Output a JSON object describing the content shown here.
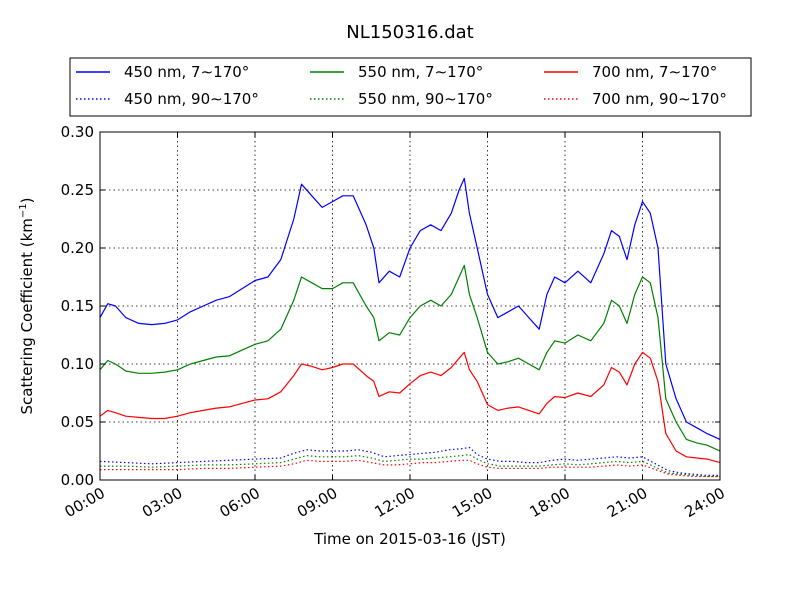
{
  "chart_data": {
    "type": "line",
    "title": "NL150316.dat",
    "xlabel": "Time on 2015-03-16 (JST)",
    "ylabel_main": "Scattering Coefficient (km",
    "ylabel_sup": "−1",
    "ylabel_end": ")",
    "xlim": [
      0,
      24
    ],
    "ylim": [
      0,
      0.3
    ],
    "grid": true,
    "legend_position": "top",
    "xticks": [
      {
        "value": 0,
        "label": "00:00"
      },
      {
        "value": 3,
        "label": "03:00"
      },
      {
        "value": 6,
        "label": "06:00"
      },
      {
        "value": 9,
        "label": "09:00"
      },
      {
        "value": 12,
        "label": "12:00"
      },
      {
        "value": 15,
        "label": "15:00"
      },
      {
        "value": 18,
        "label": "18:00"
      },
      {
        "value": 21,
        "label": "21:00"
      },
      {
        "value": 24,
        "label": "24:00"
      }
    ],
    "yticks": [
      {
        "value": 0.0,
        "label": "0.00"
      },
      {
        "value": 0.05,
        "label": "0.05"
      },
      {
        "value": 0.1,
        "label": "0.10"
      },
      {
        "value": 0.15,
        "label": "0.15"
      },
      {
        "value": 0.2,
        "label": "0.20"
      },
      {
        "value": 0.25,
        "label": "0.25"
      },
      {
        "value": 0.3,
        "label": "0.30"
      }
    ],
    "series": [
      {
        "name": "450 nm, 7∼170°",
        "color": "#0000ff",
        "style": "solid",
        "x": [
          0,
          0.3,
          0.6,
          1.0,
          1.5,
          2.0,
          2.5,
          3.0,
          3.5,
          4.0,
          4.5,
          5.0,
          5.5,
          6.0,
          6.5,
          7.0,
          7.5,
          7.8,
          8.2,
          8.6,
          9.0,
          9.4,
          9.8,
          10.3,
          10.6,
          10.8,
          11.2,
          11.6,
          12.0,
          12.4,
          12.8,
          13.2,
          13.6,
          13.9,
          14.1,
          14.3,
          14.6,
          15.0,
          15.4,
          15.8,
          16.2,
          16.6,
          17.0,
          17.3,
          17.6,
          18.0,
          18.5,
          19.0,
          19.5,
          19.8,
          20.1,
          20.4,
          20.7,
          21.0,
          21.3,
          21.6,
          21.9,
          22.3,
          22.7,
          23.1,
          23.5,
          24.0
        ],
        "y": [
          0.14,
          0.152,
          0.15,
          0.14,
          0.135,
          0.134,
          0.135,
          0.138,
          0.145,
          0.15,
          0.155,
          0.158,
          0.165,
          0.172,
          0.175,
          0.19,
          0.225,
          0.255,
          0.245,
          0.235,
          0.24,
          0.245,
          0.245,
          0.22,
          0.2,
          0.17,
          0.18,
          0.175,
          0.2,
          0.215,
          0.22,
          0.215,
          0.23,
          0.25,
          0.26,
          0.23,
          0.2,
          0.16,
          0.14,
          0.145,
          0.15,
          0.14,
          0.13,
          0.16,
          0.175,
          0.17,
          0.18,
          0.17,
          0.195,
          0.215,
          0.21,
          0.19,
          0.22,
          0.24,
          0.23,
          0.2,
          0.1,
          0.07,
          0.05,
          0.045,
          0.04,
          0.035
        ]
      },
      {
        "name": "550 nm, 7∼170°",
        "color": "#008000",
        "style": "solid",
        "x": [
          0,
          0.3,
          0.6,
          1.0,
          1.5,
          2.0,
          2.5,
          3.0,
          3.5,
          4.0,
          4.5,
          5.0,
          5.5,
          6.0,
          6.5,
          7.0,
          7.5,
          7.8,
          8.2,
          8.6,
          9.0,
          9.4,
          9.8,
          10.3,
          10.6,
          10.8,
          11.2,
          11.6,
          12.0,
          12.4,
          12.8,
          13.2,
          13.6,
          13.9,
          14.1,
          14.3,
          14.6,
          15.0,
          15.4,
          15.8,
          16.2,
          16.6,
          17.0,
          17.3,
          17.6,
          18.0,
          18.5,
          19.0,
          19.5,
          19.8,
          20.1,
          20.4,
          20.7,
          21.0,
          21.3,
          21.6,
          21.9,
          22.3,
          22.7,
          23.1,
          23.5,
          24.0
        ],
        "y": [
          0.095,
          0.103,
          0.1,
          0.094,
          0.092,
          0.092,
          0.093,
          0.095,
          0.1,
          0.103,
          0.106,
          0.107,
          0.112,
          0.117,
          0.12,
          0.13,
          0.155,
          0.175,
          0.17,
          0.165,
          0.165,
          0.17,
          0.17,
          0.15,
          0.14,
          0.12,
          0.127,
          0.125,
          0.14,
          0.15,
          0.155,
          0.15,
          0.16,
          0.175,
          0.185,
          0.16,
          0.14,
          0.11,
          0.1,
          0.102,
          0.105,
          0.1,
          0.095,
          0.11,
          0.12,
          0.118,
          0.125,
          0.12,
          0.135,
          0.155,
          0.15,
          0.135,
          0.16,
          0.175,
          0.17,
          0.14,
          0.07,
          0.05,
          0.035,
          0.032,
          0.03,
          0.025
        ]
      },
      {
        "name": "700 nm, 7∼170°",
        "color": "#ff0000",
        "style": "solid",
        "x": [
          0,
          0.3,
          0.6,
          1.0,
          1.5,
          2.0,
          2.5,
          3.0,
          3.5,
          4.0,
          4.5,
          5.0,
          5.5,
          6.0,
          6.5,
          7.0,
          7.5,
          7.8,
          8.2,
          8.6,
          9.0,
          9.4,
          9.8,
          10.3,
          10.6,
          10.8,
          11.2,
          11.6,
          12.0,
          12.4,
          12.8,
          13.2,
          13.6,
          13.9,
          14.1,
          14.3,
          14.6,
          15.0,
          15.4,
          15.8,
          16.2,
          16.6,
          17.0,
          17.3,
          17.6,
          18.0,
          18.5,
          19.0,
          19.5,
          19.8,
          20.1,
          20.4,
          20.7,
          21.0,
          21.3,
          21.6,
          21.9,
          22.3,
          22.7,
          23.1,
          23.5,
          24.0
        ],
        "y": [
          0.055,
          0.06,
          0.058,
          0.055,
          0.054,
          0.053,
          0.053,
          0.055,
          0.058,
          0.06,
          0.062,
          0.063,
          0.066,
          0.069,
          0.07,
          0.076,
          0.09,
          0.1,
          0.098,
          0.095,
          0.097,
          0.1,
          0.1,
          0.09,
          0.085,
          0.072,
          0.076,
          0.075,
          0.083,
          0.09,
          0.093,
          0.09,
          0.097,
          0.105,
          0.11,
          0.095,
          0.085,
          0.065,
          0.06,
          0.062,
          0.063,
          0.06,
          0.057,
          0.066,
          0.072,
          0.071,
          0.075,
          0.072,
          0.082,
          0.097,
          0.093,
          0.082,
          0.1,
          0.11,
          0.105,
          0.085,
          0.04,
          0.025,
          0.02,
          0.019,
          0.018,
          0.015
        ]
      },
      {
        "name": "450 nm, 90∼170°",
        "color": "#0000ff",
        "style": "dotted",
        "x": [
          0,
          1.0,
          2.0,
          3.0,
          4.0,
          5.0,
          6.0,
          7.0,
          7.5,
          8.0,
          8.5,
          9.0,
          9.5,
          10.0,
          10.5,
          11.0,
          11.5,
          12.0,
          12.5,
          13.0,
          13.5,
          14.0,
          14.3,
          14.6,
          15.0,
          15.5,
          16.0,
          16.5,
          17.0,
          17.5,
          18.0,
          18.5,
          19.0,
          19.5,
          20.0,
          20.5,
          21.0,
          21.5,
          22.0,
          22.5,
          23.0,
          23.5,
          24.0
        ],
        "y": [
          0.016,
          0.015,
          0.014,
          0.015,
          0.016,
          0.017,
          0.018,
          0.019,
          0.023,
          0.026,
          0.025,
          0.025,
          0.025,
          0.026,
          0.024,
          0.02,
          0.021,
          0.022,
          0.023,
          0.024,
          0.026,
          0.027,
          0.028,
          0.022,
          0.018,
          0.016,
          0.016,
          0.015,
          0.015,
          0.017,
          0.018,
          0.017,
          0.018,
          0.019,
          0.02,
          0.019,
          0.02,
          0.014,
          0.008,
          0.006,
          0.005,
          0.004,
          0.004
        ]
      },
      {
        "name": "550 nm, 90∼170°",
        "color": "#008000",
        "style": "dotted",
        "x": [
          0,
          1.0,
          2.0,
          3.0,
          4.0,
          5.0,
          6.0,
          7.0,
          7.5,
          8.0,
          8.5,
          9.0,
          9.5,
          10.0,
          10.5,
          11.0,
          11.5,
          12.0,
          12.5,
          13.0,
          13.5,
          14.0,
          14.3,
          14.6,
          15.0,
          15.5,
          16.0,
          16.5,
          17.0,
          17.5,
          18.0,
          18.5,
          19.0,
          19.5,
          20.0,
          20.5,
          21.0,
          21.5,
          22.0,
          22.5,
          23.0,
          23.5,
          24.0
        ],
        "y": [
          0.012,
          0.012,
          0.011,
          0.012,
          0.013,
          0.013,
          0.014,
          0.015,
          0.018,
          0.021,
          0.02,
          0.02,
          0.02,
          0.021,
          0.019,
          0.016,
          0.017,
          0.018,
          0.018,
          0.019,
          0.02,
          0.021,
          0.022,
          0.018,
          0.014,
          0.012,
          0.012,
          0.012,
          0.012,
          0.013,
          0.014,
          0.013,
          0.014,
          0.015,
          0.016,
          0.015,
          0.016,
          0.011,
          0.006,
          0.005,
          0.004,
          0.003,
          0.003
        ]
      },
      {
        "name": "700 nm, 90∼170°",
        "color": "#ff0000",
        "style": "dotted",
        "x": [
          0,
          1.0,
          2.0,
          3.0,
          4.0,
          5.0,
          6.0,
          7.0,
          7.5,
          8.0,
          8.5,
          9.0,
          9.5,
          10.0,
          10.5,
          11.0,
          11.5,
          12.0,
          12.5,
          13.0,
          13.5,
          14.0,
          14.3,
          14.6,
          15.0,
          15.5,
          16.0,
          16.5,
          17.0,
          17.5,
          18.0,
          18.5,
          19.0,
          19.5,
          20.0,
          20.5,
          21.0,
          21.5,
          22.0,
          22.5,
          23.0,
          23.5,
          24.0
        ],
        "y": [
          0.009,
          0.009,
          0.009,
          0.009,
          0.01,
          0.01,
          0.011,
          0.012,
          0.014,
          0.017,
          0.016,
          0.016,
          0.016,
          0.017,
          0.015,
          0.013,
          0.013,
          0.014,
          0.015,
          0.015,
          0.016,
          0.017,
          0.017,
          0.014,
          0.011,
          0.01,
          0.01,
          0.01,
          0.01,
          0.011,
          0.011,
          0.011,
          0.011,
          0.012,
          0.013,
          0.012,
          0.013,
          0.009,
          0.005,
          0.004,
          0.003,
          0.003,
          0.003
        ]
      }
    ]
  }
}
